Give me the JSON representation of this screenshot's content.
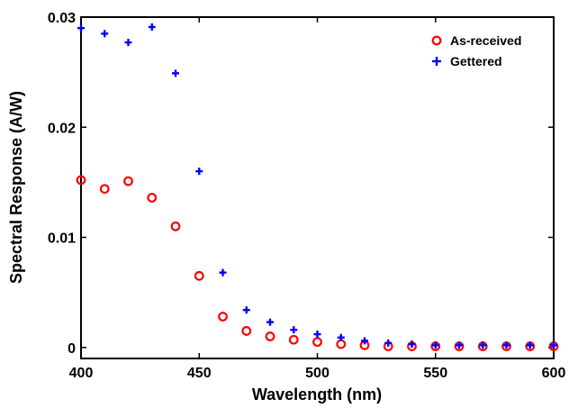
{
  "chart_data": {
    "type": "scatter",
    "title": "",
    "xlabel": "Wavelength (nm)",
    "ylabel": "Spectral Response (A/W)",
    "xlim": [
      400,
      600
    ],
    "ylim": [
      -0.001,
      0.03
    ],
    "xticks": [
      400,
      450,
      500,
      550,
      600
    ],
    "yticks": [
      0,
      0.01,
      0.02,
      0.03
    ],
    "xtick_labels": [
      "400",
      "450",
      "500",
      "550",
      "600"
    ],
    "ytick_labels": [
      "0",
      "0.01",
      "0.02",
      "0.03"
    ],
    "grid": false,
    "legend_position": "top-right",
    "series": [
      {
        "name": "As-received",
        "marker": "circle-open",
        "color": "#ff0000",
        "x": [
          400,
          410,
          420,
          430,
          440,
          450,
          460,
          470,
          480,
          490,
          500,
          510,
          520,
          530,
          540,
          550,
          560,
          570,
          580,
          590,
          600
        ],
        "y": [
          0.0152,
          0.0144,
          0.0151,
          0.0136,
          0.011,
          0.0065,
          0.0028,
          0.0015,
          0.001,
          0.0007,
          0.0005,
          0.0003,
          0.0002,
          0.0001,
          0.0001,
          0.0001,
          0.0001,
          0.0001,
          0.0001,
          0.0001,
          0.0001
        ]
      },
      {
        "name": "Gettered",
        "marker": "plus",
        "color": "#0000ff",
        "x": [
          400,
          410,
          420,
          430,
          440,
          450,
          460,
          470,
          480,
          490,
          500,
          510,
          520,
          530,
          540,
          550,
          560,
          570,
          580,
          590,
          600
        ],
        "y": [
          0.029,
          0.0285,
          0.0277,
          0.0291,
          0.0249,
          0.016,
          0.0068,
          0.0034,
          0.0023,
          0.0016,
          0.0012,
          0.0009,
          0.0006,
          0.0004,
          0.0003,
          0.0002,
          0.0002,
          0.0002,
          0.0002,
          0.0002,
          0.0002
        ]
      }
    ]
  }
}
